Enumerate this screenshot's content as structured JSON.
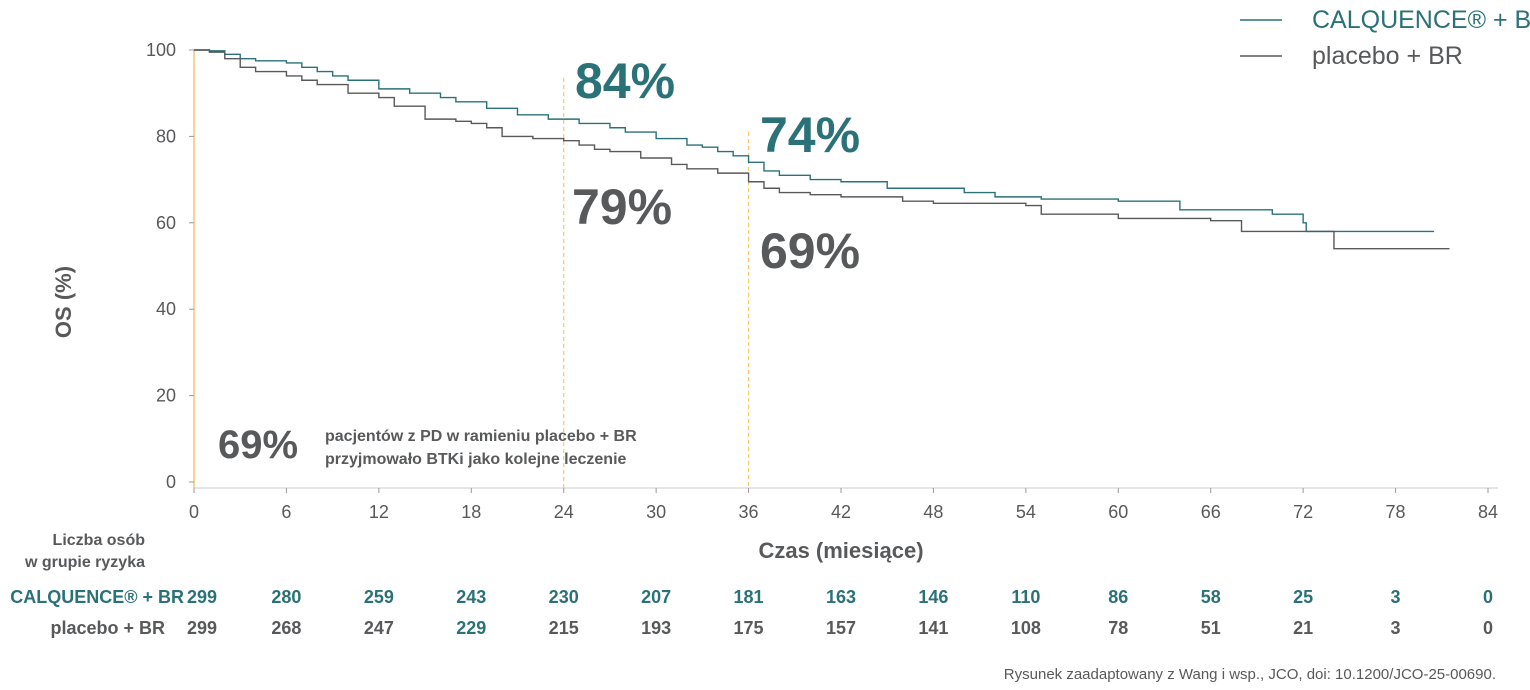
{
  "colors": {
    "calquence": "#2a7278",
    "placebo": "#58595b",
    "refline": "#f5c96a",
    "axis": "#cccccc"
  },
  "chart_data": {
    "type": "line",
    "subtype": "kaplan-meier step",
    "xlabel": "Czas (miesiące)",
    "ylabel": "OS (%)",
    "xlim": [
      0,
      84
    ],
    "ylim": [
      0,
      100
    ],
    "xticks": [
      0,
      6,
      12,
      18,
      24,
      30,
      36,
      42,
      48,
      54,
      60,
      66,
      72,
      78,
      84
    ],
    "yticks": [
      0,
      20,
      40,
      60,
      80,
      100
    ],
    "legend_position": "top-right",
    "reference_lines_x": [
      24,
      36
    ],
    "series": [
      {
        "name": "CALQUENCE® + BR",
        "key": "calquence",
        "points": [
          [
            0,
            100
          ],
          [
            1,
            99.8
          ],
          [
            2,
            99
          ],
          [
            3,
            98
          ],
          [
            4,
            97.5
          ],
          [
            6,
            97
          ],
          [
            7,
            96
          ],
          [
            8,
            95
          ],
          [
            9,
            94
          ],
          [
            10,
            93
          ],
          [
            12,
            91
          ],
          [
            14,
            90
          ],
          [
            16,
            89
          ],
          [
            17,
            88
          ],
          [
            19,
            86.5
          ],
          [
            21,
            85
          ],
          [
            23,
            84
          ],
          [
            25,
            83
          ],
          [
            27,
            82
          ],
          [
            28,
            81
          ],
          [
            30,
            79.5
          ],
          [
            32,
            78
          ],
          [
            33,
            77.5
          ],
          [
            34,
            76.5
          ],
          [
            35,
            75.5
          ],
          [
            36,
            74
          ],
          [
            37,
            72
          ],
          [
            38,
            71
          ],
          [
            40,
            70
          ],
          [
            42,
            69.5
          ],
          [
            45,
            68
          ],
          [
            50,
            67
          ],
          [
            52,
            66
          ],
          [
            55,
            65.5
          ],
          [
            60,
            65
          ],
          [
            64,
            63
          ],
          [
            70,
            62
          ],
          [
            72,
            60
          ],
          [
            72.2,
            58
          ],
          [
            80.5,
            58
          ]
        ]
      },
      {
        "name": "placebo + BR",
        "key": "placebo",
        "points": [
          [
            0,
            100
          ],
          [
            1,
            99.5
          ],
          [
            2,
            98
          ],
          [
            3,
            96
          ],
          [
            4,
            95
          ],
          [
            6,
            94
          ],
          [
            7,
            93
          ],
          [
            8,
            92
          ],
          [
            10,
            90
          ],
          [
            12,
            89
          ],
          [
            13,
            87
          ],
          [
            15,
            84
          ],
          [
            17,
            83.5
          ],
          [
            18,
            83
          ],
          [
            19,
            82
          ],
          [
            20,
            80
          ],
          [
            22,
            79.5
          ],
          [
            24,
            79
          ],
          [
            25,
            78
          ],
          [
            26,
            77
          ],
          [
            27,
            76.5
          ],
          [
            29,
            75
          ],
          [
            31,
            73.5
          ],
          [
            32,
            72.5
          ],
          [
            34,
            71.5
          ],
          [
            36,
            69.5
          ],
          [
            37,
            68
          ],
          [
            38,
            67
          ],
          [
            40,
            66.5
          ],
          [
            42,
            66
          ],
          [
            46,
            65
          ],
          [
            48,
            64.5
          ],
          [
            54,
            64
          ],
          [
            55,
            62
          ],
          [
            60,
            61
          ],
          [
            66,
            60.5
          ],
          [
            68,
            58
          ],
          [
            73.5,
            58
          ],
          [
            74,
            54
          ],
          [
            81.5,
            54
          ]
        ]
      }
    ],
    "annotations": {
      "calq_24": "84%",
      "plac_24": "79%",
      "calq_36": "74%",
      "plac_36": "69%",
      "pd_pct": "69%",
      "pd_line1": "pacjentów z PD w ramieniu placebo + BR",
      "pd_line2": "przyjmowało BTKi jako kolejne leczenie"
    }
  },
  "legend": {
    "calquence": "CALQUENCE® + BR",
    "placebo": "placebo + BR"
  },
  "risk_table": {
    "title_line1": "Liczba osób",
    "title_line2": "w grupie ryzyka",
    "rows": [
      {
        "label": "CALQUENCE® + BR",
        "values": [
          "299",
          "280",
          "259",
          "243",
          "230",
          "207",
          "181",
          "163",
          "146",
          "110",
          "86",
          "58",
          "25",
          "3",
          "0"
        ]
      },
      {
        "label": "placebo + BR",
        "values": [
          "299",
          "268",
          "247",
          "229",
          "215",
          "193",
          "175",
          "157",
          "141",
          "108",
          "78",
          "51",
          "21",
          "3",
          "0"
        ]
      }
    ]
  },
  "footnote": "Rysunek zaadaptowany z Wang i wsp., JCO, doi: 10.1200/JCO-25-00690."
}
